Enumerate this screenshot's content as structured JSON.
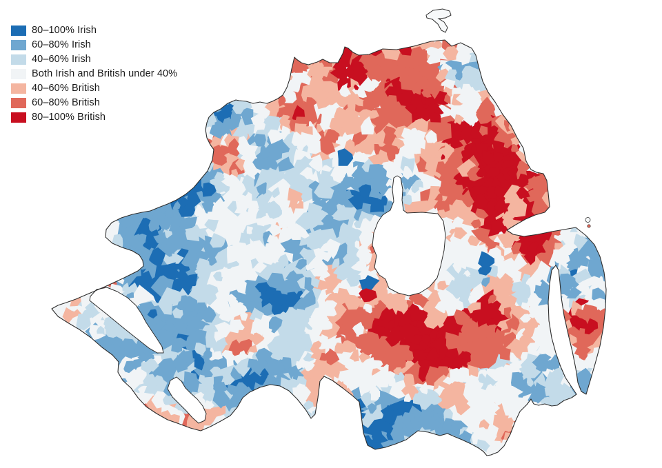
{
  "legend": {
    "items": [
      {
        "label": "80–100% Irish",
        "color": "#1c6db4"
      },
      {
        "label": "60–80% Irish",
        "color": "#6fa7d0"
      },
      {
        "label": "40–60% Irish",
        "color": "#c3dbe9"
      },
      {
        "label": "Both Irish and British under 40%",
        "color": "#f1f4f6"
      },
      {
        "label": "40–60% British",
        "color": "#f4b5a0"
      },
      {
        "label": "60–80% British",
        "color": "#e0685a"
      },
      {
        "label": "80–100% British",
        "color": "#c80f20"
      }
    ]
  },
  "map": {
    "outline_color": "#2e2e2e",
    "water_color": "#ffffff",
    "land_base_color": "#f1f4f6"
  }
}
